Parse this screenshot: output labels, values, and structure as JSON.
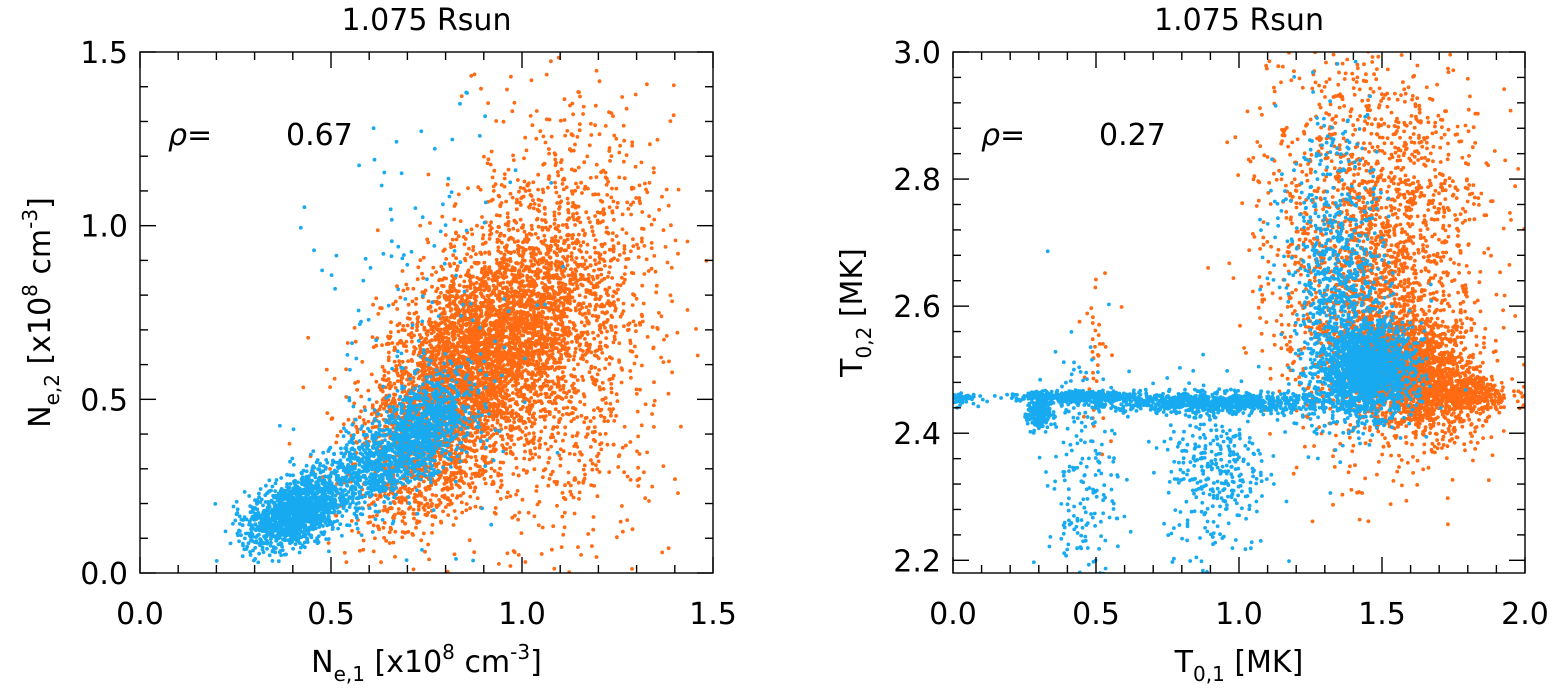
{
  "chart_data": [
    {
      "type": "scatter",
      "title": "1.075 Rsun",
      "xlabel": {
        "base": "N",
        "sub": "e,1",
        "rest": " [x10",
        "sup": "8",
        "rest2": " cm",
        "sup2": "-3",
        "end": "]"
      },
      "ylabel": {
        "base": "N",
        "sub": "e,2",
        "rest": " [x10",
        "sup": "8",
        "rest2": " cm",
        "sup2": "-3",
        "end": "]"
      },
      "xlim": [
        0.0,
        1.5
      ],
      "ylim": [
        0.0,
        1.5
      ],
      "xticks": [
        "0.0",
        "0.5",
        "1.0",
        "1.5"
      ],
      "yticks": [
        "0.0",
        "0.5",
        "1.0",
        "1.5"
      ],
      "annotation": {
        "label": "ρ=",
        "value": "0.67"
      },
      "grid": false,
      "series": [
        {
          "color": "#ff6a13",
          "clusters": [
            {
              "cx": 0.88,
              "cy": 0.62,
              "sx": 0.13,
              "sy": 0.16,
              "n": 3200,
              "rho": 0.45
            },
            {
              "cx": 1.05,
              "cy": 0.78,
              "sx": 0.14,
              "sy": 0.26,
              "n": 1400,
              "rho": 0.3
            },
            {
              "cx": 0.75,
              "cy": 0.35,
              "sx": 0.1,
              "sy": 0.12,
              "n": 900,
              "rho": 0.4
            },
            {
              "cx": 1.15,
              "cy": 0.55,
              "sx": 0.12,
              "sy": 0.3,
              "n": 500,
              "rho": 0.1
            }
          ]
        },
        {
          "color": "#18aaf0",
          "clusters": [
            {
              "cx": 0.4,
              "cy": 0.17,
              "sx": 0.06,
              "sy": 0.05,
              "n": 1200,
              "rho": 0.4
            },
            {
              "cx": 0.6,
              "cy": 0.3,
              "sx": 0.1,
              "sy": 0.08,
              "n": 900,
              "rho": 0.65
            },
            {
              "cx": 0.75,
              "cy": 0.43,
              "sx": 0.06,
              "sy": 0.07,
              "n": 700,
              "rho": 0.4
            },
            {
              "cx": 0.75,
              "cy": 0.7,
              "sx": 0.15,
              "sy": 0.3,
              "n": 150,
              "rho": 0.1
            }
          ]
        }
      ]
    },
    {
      "type": "scatter",
      "title": "1.075 Rsun",
      "xlabel": {
        "base": "T",
        "sub": "0,1",
        "rest": " [MK]"
      },
      "ylabel": {
        "base": "T",
        "sub": "0,2",
        "rest": " [MK]"
      },
      "xlim": [
        0.0,
        2.0
      ],
      "ylim": [
        2.18,
        3.0
      ],
      "xticks": [
        "0.0",
        "0.5",
        "1.0",
        "1.5",
        "2.0"
      ],
      "yticks": [
        "2.2",
        "2.4",
        "2.6",
        "2.8",
        "3.0"
      ],
      "annotation": {
        "label": "ρ=",
        "value": "0.27"
      },
      "grid": false,
      "series": [
        {
          "color": "#ff6a13",
          "clusters": [
            {
              "cx": 1.6,
              "cy": 2.5,
              "sx": 0.12,
              "sy": 0.05,
              "n": 1800,
              "rho": -0.3
            },
            {
              "cx": 1.48,
              "cy": 2.62,
              "sx": 0.17,
              "sy": 0.13,
              "n": 1500,
              "rho": 0.0
            },
            {
              "cx": 1.45,
              "cy": 2.82,
              "sx": 0.2,
              "sy": 0.12,
              "n": 700,
              "rho": 0.0
            },
            {
              "cx": 1.75,
              "cy": 2.46,
              "sx": 0.1,
              "sy": 0.015,
              "n": 500,
              "rho": 0.0
            },
            {
              "cx": 0.5,
              "cy": 2.55,
              "sx": 0.03,
              "sy": 0.08,
              "n": 40,
              "rho": 0.0
            }
          ]
        },
        {
          "color": "#18aaf0",
          "clusters": [
            {
              "cx": 1.45,
              "cy": 2.5,
              "sx": 0.08,
              "sy": 0.035,
              "n": 1600,
              "rho": 0.0
            },
            {
              "cx": 1.35,
              "cy": 2.6,
              "sx": 0.09,
              "sy": 0.1,
              "n": 700,
              "rho": 0.0
            },
            {
              "cx": 0.9,
              "cy": 2.448,
              "sx": 0.22,
              "sy": 0.008,
              "n": 900,
              "rho": 0.0
            },
            {
              "cx": 0.44,
              "cy": 2.458,
              "sx": 0.1,
              "sy": 0.004,
              "n": 400,
              "rho": 0.0
            },
            {
              "cx": 0.3,
              "cy": 2.43,
              "sx": 0.02,
              "sy": 0.015,
              "n": 200,
              "rho": 0.0
            },
            {
              "cx": 0.92,
              "cy": 2.35,
              "sx": 0.09,
              "sy": 0.07,
              "n": 350,
              "rho": 0.0
            },
            {
              "cx": 0.45,
              "cy": 2.33,
              "sx": 0.06,
              "sy": 0.1,
              "n": 200,
              "rho": 0.0
            },
            {
              "cx": 0.02,
              "cy": 2.455,
              "sx": 0.03,
              "sy": 0.005,
              "n": 60,
              "rho": 0.0
            },
            {
              "cx": 1.3,
              "cy": 2.75,
              "sx": 0.1,
              "sy": 0.12,
              "n": 150,
              "rho": 0.0
            }
          ]
        }
      ]
    }
  ]
}
